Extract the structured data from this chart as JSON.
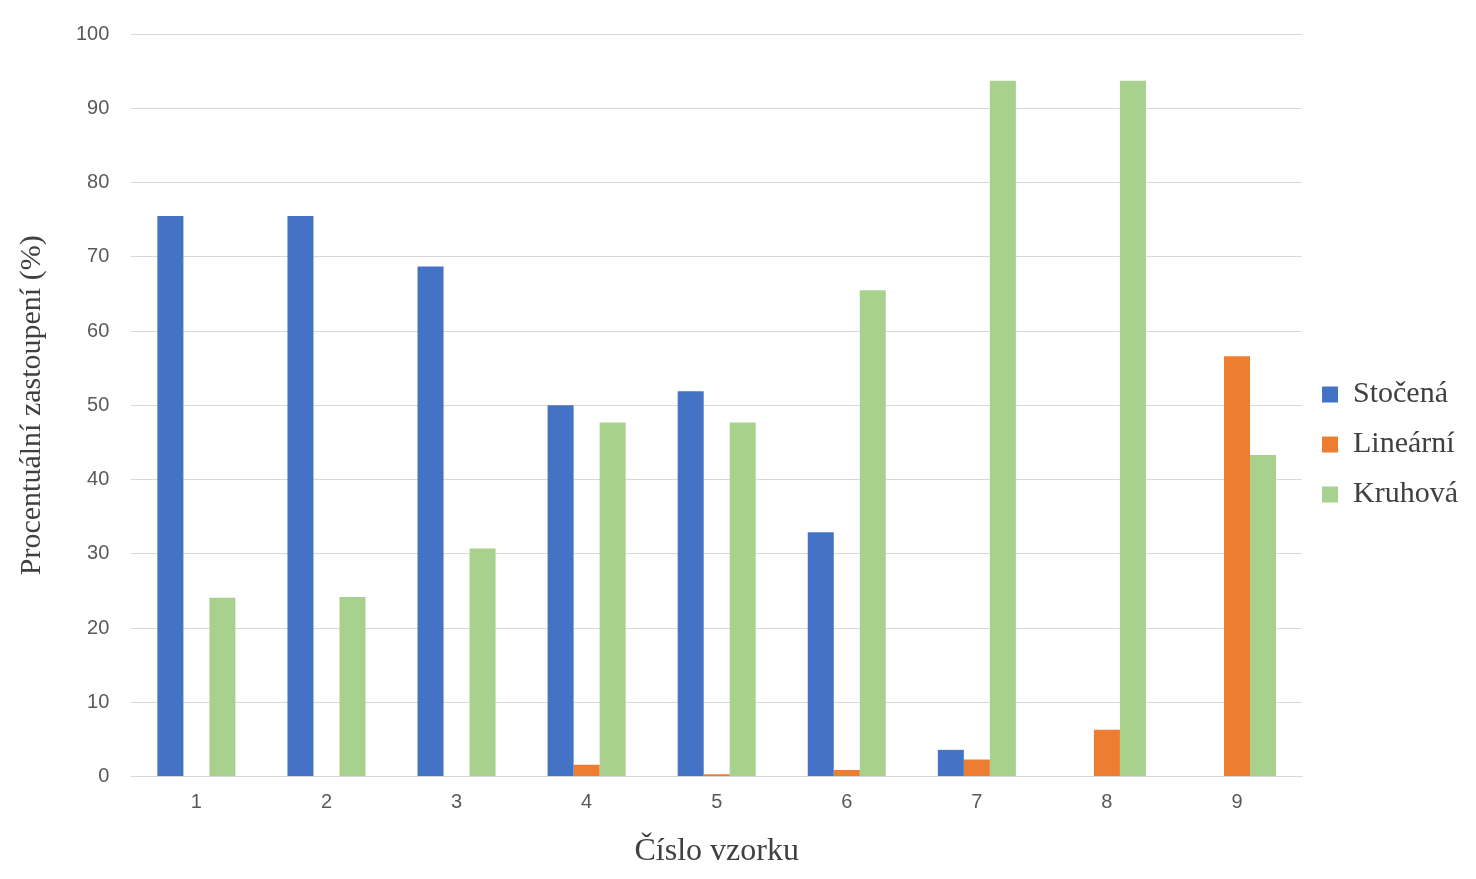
{
  "chart_data": {
    "type": "bar",
    "xlabel": "Číslo vzorku",
    "ylabel": "Procentuální zastoupení (%)",
    "categories": [
      "1",
      "2",
      "3",
      "4",
      "5",
      "6",
      "7",
      "8",
      "9"
    ],
    "series": [
      {
        "name": "Stočená",
        "color": "#4472c4",
        "values": [
          75.5,
          75.5,
          68.7,
          50,
          51.9,
          32.9,
          3.6,
          0,
          0
        ]
      },
      {
        "name": "Lineární",
        "color": "#ed7d31",
        "values": [
          0,
          0,
          0,
          1.6,
          0.3,
          0.9,
          2.3,
          6.3,
          56.6
        ]
      },
      {
        "name": "Kruhová",
        "color": "#a9d18e",
        "values": [
          24.1,
          24.2,
          30.7,
          47.7,
          47.7,
          65.5,
          93.7,
          93.7,
          43.3
        ]
      }
    ],
    "ylim": [
      0,
      100
    ],
    "yticks": [
      0,
      10,
      20,
      30,
      40,
      50,
      60,
      70,
      80,
      90,
      100
    ],
    "grid": "y",
    "legend": "right"
  }
}
